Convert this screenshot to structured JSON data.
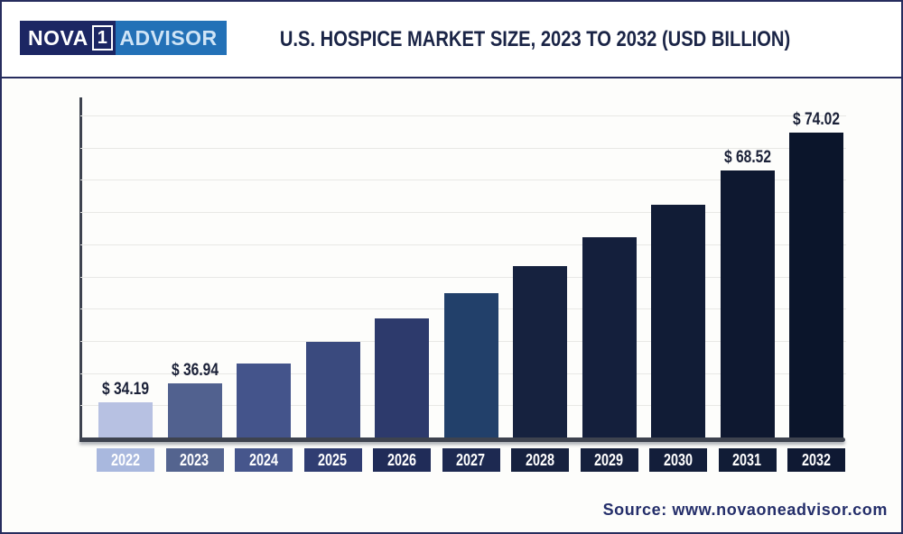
{
  "header": {
    "logo": {
      "nova": "NOVA",
      "one": "1",
      "advisor": "ADVISOR"
    },
    "title": "U.S. HOSPICE MARKET SIZE, 2023 TO 2032 (USD BILLION)"
  },
  "footer": {
    "source": "Source: www.novaoneadvisor.com"
  },
  "chart_data": {
    "type": "bar",
    "title": "U.S. HOSPICE MARKET SIZE, 2023 TO 2032 (USD BILLION)",
    "xlabel": "",
    "ylabel": "",
    "unit": "USD Billion",
    "categories": [
      "2022",
      "2023",
      "2024",
      "2025",
      "2026",
      "2027",
      "2028",
      "2029",
      "2030",
      "2031",
      "2032"
    ],
    "values": [
      34.19,
      36.94,
      39.9,
      43.1,
      46.55,
      50.28,
      54.31,
      58.66,
      63.36,
      68.52,
      74.02
    ],
    "data_labels": [
      "$ 34.19",
      "$ 36.94",
      null,
      null,
      null,
      null,
      null,
      null,
      null,
      "$ 68.52",
      "$ 74.02"
    ],
    "bar_colors": [
      "#b7c1e2",
      "#51618f",
      "#44548b",
      "#3a4a7e",
      "#2d3a6c",
      "#22406a",
      "#16223f",
      "#141f3c",
      "#111c36",
      "#0e1830",
      "#0b152b"
    ],
    "category_box_colors": [
      "#a9b8de",
      "#54648f",
      "#46568c",
      "#303d72",
      "#202c58",
      "#1d2951",
      "#16213f",
      "#15203d",
      "#131e3a",
      "#111c36",
      "#0f1933"
    ],
    "label_color": "#1b2138",
    "axis_color": "#3e434f",
    "gridline_color": "#e8e8e5",
    "grid": "horizontal",
    "gridline_count": 10,
    "legend": "none",
    "baseline_not_zero": true,
    "ylim": [
      29,
      78
    ]
  }
}
